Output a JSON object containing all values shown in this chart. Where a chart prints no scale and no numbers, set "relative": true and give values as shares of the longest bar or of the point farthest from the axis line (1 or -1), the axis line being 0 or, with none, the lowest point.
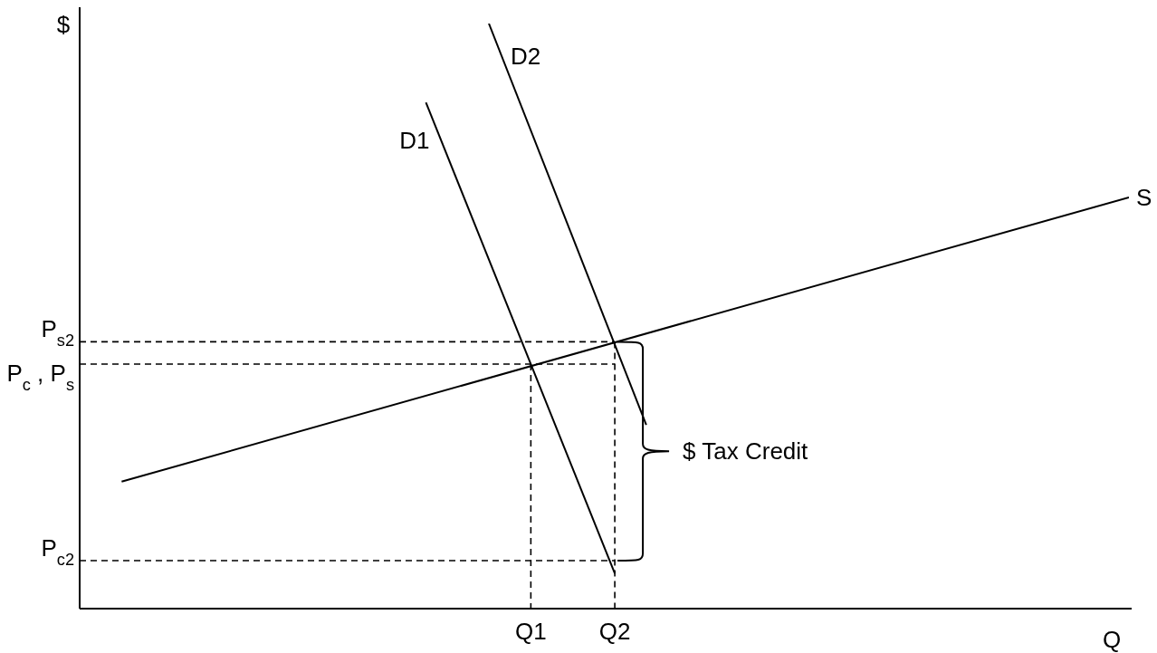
{
  "chart_data": {
    "type": "line",
    "relative": true,
    "xlabel": "Q",
    "ylabel": "$",
    "marker": "none",
    "categories": [
      null,
      null,
      null,
      null,
      null,
      null,
      null,
      null,
      null,
      null,
      null,
      null,
      null,
      null,
      null,
      null,
      null,
      null,
      null,
      null,
      null,
      null,
      null,
      null,
      null,
      null,
      null,
      null,
      null,
      null,
      null,
      null,
      null,
      null,
      null,
      null,
      null,
      null,
      null,
      null,
      null,
      null,
      null,
      "Q1",
      null,
      null,
      null,
      null,
      null,
      null,
      null,
      "Q2",
      null,
      null,
      null,
      null,
      null,
      null,
      null,
      null,
      null,
      null,
      null,
      null,
      null,
      null,
      null,
      null,
      null,
      null,
      null,
      null,
      null,
      null,
      null,
      null,
      null,
      null,
      null,
      null,
      null,
      null,
      null,
      null,
      null,
      null,
      null,
      null,
      null,
      null,
      null,
      null,
      null,
      null,
      null,
      null,
      null,
      null,
      null,
      null,
      null
    ],
    "series": [
      {
        "name": "S",
        "color": "#000000",
        "values": [
          null,
          null,
          null,
          null,
          0.217,
          null,
          null,
          null,
          null,
          null,
          null,
          null,
          null,
          null,
          null,
          null,
          null,
          null,
          null,
          null,
          null,
          null,
          null,
          null,
          null,
          null,
          null,
          null,
          null,
          null,
          null,
          null,
          null,
          null,
          null,
          null,
          null,
          null,
          null,
          null,
          null,
          null,
          null,
          null,
          null,
          null,
          null,
          null,
          null,
          null,
          null,
          null,
          null,
          null,
          null,
          null,
          null,
          null,
          null,
          null,
          null,
          null,
          null,
          null,
          null,
          null,
          null,
          null,
          null,
          null,
          null,
          null,
          null,
          null,
          null,
          null,
          null,
          null,
          null,
          null,
          null,
          null,
          null,
          null,
          null,
          null,
          null,
          null,
          null,
          null,
          null,
          null,
          null,
          null,
          null,
          null,
          null,
          null,
          null,
          null,
          0.703
        ]
      },
      {
        "name": "D1",
        "color": "#000000",
        "values": [
          null,
          null,
          null,
          null,
          null,
          null,
          null,
          null,
          null,
          null,
          null,
          null,
          null,
          null,
          null,
          null,
          null,
          null,
          null,
          null,
          null,
          null,
          null,
          null,
          null,
          null,
          null,
          null,
          null,
          null,
          null,
          null,
          null,
          0.865,
          null,
          null,
          null,
          null,
          null,
          null,
          null,
          null,
          null,
          null,
          null,
          null,
          null,
          null,
          null,
          null,
          null,
          0.06,
          null,
          null,
          null,
          null,
          null,
          null,
          null,
          null,
          null,
          null,
          null,
          null,
          null,
          null,
          null,
          null,
          null,
          null,
          null,
          null,
          null,
          null,
          null,
          null,
          null,
          null,
          null,
          null,
          null,
          null,
          null,
          null,
          null,
          null,
          null,
          null,
          null,
          null,
          null,
          null,
          null,
          null,
          null,
          null,
          null,
          null,
          null,
          null,
          null
        ]
      },
      {
        "name": "D2",
        "color": "#000000",
        "values": [
          null,
          null,
          null,
          null,
          null,
          null,
          null,
          null,
          null,
          null,
          null,
          null,
          null,
          null,
          null,
          null,
          null,
          null,
          null,
          null,
          null,
          null,
          null,
          null,
          null,
          null,
          null,
          null,
          null,
          null,
          null,
          null,
          null,
          null,
          null,
          null,
          null,
          null,
          null,
          1,
          null,
          null,
          null,
          null,
          null,
          null,
          null,
          null,
          null,
          null,
          null,
          null,
          null,
          null,
          0.314,
          null,
          null,
          null,
          null,
          null,
          null,
          null,
          null,
          null,
          null,
          null,
          null,
          null,
          null,
          null,
          null,
          null,
          null,
          null,
          null,
          null,
          null,
          null,
          null,
          null,
          null,
          null,
          null,
          null,
          null,
          null,
          null,
          null,
          null,
          null,
          null,
          null,
          null,
          null,
          null,
          null,
          null,
          null,
          null,
          null,
          null
        ]
      },
      {
        "color": "#000000",
        "line_style": "dashed",
        "values": [
          0.456,
          null,
          null,
          null,
          null,
          null,
          null,
          null,
          null,
          null,
          null,
          null,
          null,
          null,
          null,
          null,
          null,
          null,
          null,
          null,
          null,
          null,
          null,
          null,
          null,
          null,
          null,
          null,
          null,
          null,
          null,
          null,
          null,
          null,
          null,
          null,
          null,
          null,
          null,
          null,
          null,
          null,
          null,
          null,
          null,
          null,
          null,
          null,
          null,
          null,
          null,
          0.456,
          null,
          null,
          null,
          null,
          null,
          null,
          null,
          null,
          null,
          null,
          null,
          null,
          null,
          null,
          null,
          null,
          null,
          null,
          null,
          null,
          null,
          null,
          null,
          null,
          null,
          null,
          null,
          null,
          null,
          null,
          null,
          null,
          null,
          null,
          null,
          null,
          null,
          null,
          null,
          null,
          null,
          null,
          null,
          null,
          null,
          null,
          null,
          null,
          null
        ]
      },
      {
        "color": "#000000",
        "line_style": "dashed",
        "values": [
          0.418,
          null,
          null,
          null,
          null,
          null,
          null,
          null,
          null,
          null,
          null,
          null,
          null,
          null,
          null,
          null,
          null,
          null,
          null,
          null,
          null,
          null,
          null,
          null,
          null,
          null,
          null,
          null,
          null,
          null,
          null,
          null,
          null,
          null,
          null,
          null,
          null,
          null,
          null,
          null,
          null,
          null,
          null,
          null,
          null,
          null,
          null,
          null,
          null,
          null,
          null,
          0.418,
          null,
          null,
          null,
          null,
          null,
          null,
          null,
          null,
          null,
          null,
          null,
          null,
          null,
          null,
          null,
          null,
          null,
          null,
          null,
          null,
          null,
          null,
          null,
          null,
          null,
          null,
          null,
          null,
          null,
          null,
          null,
          null,
          null,
          null,
          null,
          null,
          null,
          null,
          null,
          null,
          null,
          null,
          null,
          null,
          null,
          null,
          null,
          null,
          null
        ]
      },
      {
        "color": "#000000",
        "line_style": "dashed",
        "values": [
          0.082,
          null,
          null,
          null,
          null,
          null,
          null,
          null,
          null,
          null,
          null,
          null,
          null,
          null,
          null,
          null,
          null,
          null,
          null,
          null,
          null,
          null,
          null,
          null,
          null,
          null,
          null,
          null,
          null,
          null,
          null,
          null,
          null,
          null,
          null,
          null,
          null,
          null,
          null,
          null,
          null,
          null,
          null,
          null,
          null,
          null,
          null,
          null,
          null,
          null,
          null,
          0.082,
          null,
          null,
          null,
          null,
          null,
          null,
          null,
          null,
          null,
          null,
          null,
          null,
          null,
          null,
          null,
          null,
          null,
          null,
          null,
          null,
          null,
          null,
          null,
          null,
          null,
          null,
          null,
          null,
          null,
          null,
          null,
          null,
          null,
          null,
          null,
          null,
          null,
          null,
          null,
          null,
          null,
          null,
          null,
          null,
          null,
          null,
          null,
          null,
          null
        ]
      },
      {
        "color": "#000000",
        "line_style": "dashed",
        "x": [
          "Q1",
          "Q1"
        ],
        "values": [
          0.418,
          0
        ]
      },
      {
        "color": "#000000",
        "line_style": "dashed",
        "x": [
          "Q2",
          "Q2"
        ],
        "values": [
          0.456,
          0
        ]
      }
    ],
    "annotations": [
      "P$_{s2}$",
      "P$_{c}$ , P$_{s}$",
      "P$_{c2}$",
      "$ Tax Credit"
    ]
  }
}
